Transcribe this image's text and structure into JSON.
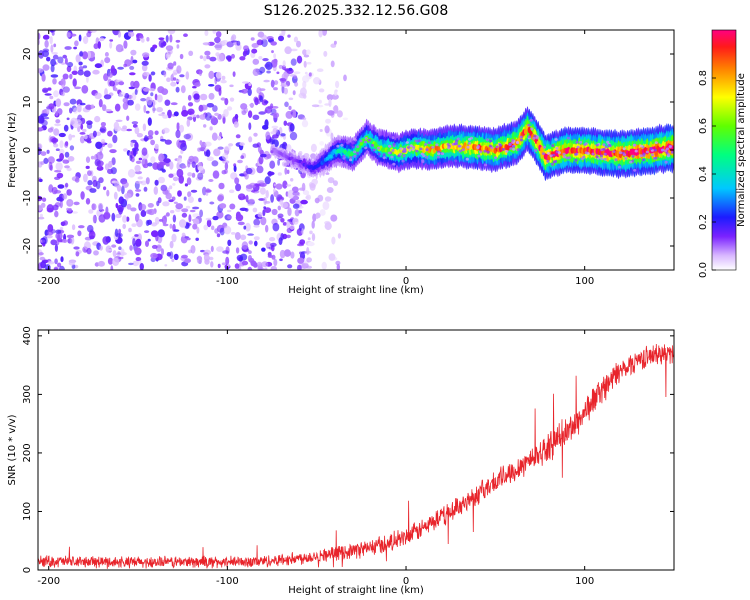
{
  "title": "S126.2025.332.12.56.G08",
  "chart_data": [
    {
      "type": "heatmap",
      "name": "spectrogram",
      "xlabel": "Height of straight line (km)",
      "ylabel": "Frequency (Hz)",
      "xlim": [
        -206,
        150
      ],
      "ylim": [
        -25,
        25
      ],
      "xticks": [
        -200,
        -100,
        0,
        100
      ],
      "yticks": [
        -20,
        -10,
        0,
        10,
        20
      ],
      "colorbar": {
        "label": "Normalized spectral amplitude",
        "range": [
          0,
          1
        ],
        "ticks": [
          0.0,
          0.2,
          0.4,
          0.6,
          0.8
        ],
        "tick_labels": [
          "0.0",
          "0.2",
          "0.4",
          "0.6",
          "0.8"
        ]
      },
      "noise_region": {
        "x_start": -206,
        "x_end": -57,
        "typical_amplitude": 0.12
      },
      "peak_track": [
        {
          "x": -75,
          "freq": 0,
          "amp": 0.1
        },
        {
          "x": -60,
          "freq": -2.5,
          "amp": 0.15
        },
        {
          "x": -52,
          "freq": -3.8,
          "amp": 0.2
        },
        {
          "x": -45,
          "freq": -2,
          "amp": 0.3
        },
        {
          "x": -38,
          "freq": 0,
          "amp": 0.4
        },
        {
          "x": -30,
          "freq": -1,
          "amp": 0.5
        },
        {
          "x": -22,
          "freq": 2.5,
          "amp": 0.55
        },
        {
          "x": -15,
          "freq": 0.5,
          "amp": 0.6
        },
        {
          "x": -5,
          "freq": -0.5,
          "amp": 0.65
        },
        {
          "x": 5,
          "freq": 0.5,
          "amp": 0.7
        },
        {
          "x": 15,
          "freq": 0,
          "amp": 0.75
        },
        {
          "x": 25,
          "freq": 0.8,
          "amp": 0.8
        },
        {
          "x": 40,
          "freq": 0.5,
          "amp": 0.85
        },
        {
          "x": 50,
          "freq": 0,
          "amp": 0.85
        },
        {
          "x": 62,
          "freq": 1.5,
          "amp": 0.88
        },
        {
          "x": 68,
          "freq": 4.5,
          "amp": 0.9
        },
        {
          "x": 72,
          "freq": 2.5,
          "amp": 0.9
        },
        {
          "x": 78,
          "freq": -1.5,
          "amp": 0.92
        },
        {
          "x": 90,
          "freq": 0,
          "amp": 0.93
        },
        {
          "x": 105,
          "freq": -0.3,
          "amp": 0.95
        },
        {
          "x": 120,
          "freq": -0.8,
          "amp": 0.97
        },
        {
          "x": 135,
          "freq": -0.2,
          "amp": 0.98
        },
        {
          "x": 150,
          "freq": 0.5,
          "amp": 1.0
        }
      ]
    },
    {
      "type": "line",
      "name": "snr",
      "xlabel": "Height of straight line (km)",
      "ylabel": "SNR (10 * v/v)",
      "xlim": [
        -206,
        150
      ],
      "ylim": [
        0,
        410
      ],
      "xticks": [
        -200,
        -100,
        0,
        100
      ],
      "yticks": [
        0,
        100,
        200,
        300,
        400
      ],
      "color": "#e8242b",
      "series": [
        {
          "name": "SNR",
          "x": [
            -206,
            -180,
            -150,
            -120,
            -100,
            -80,
            -60,
            -40,
            -20,
            0,
            20,
            40,
            60,
            80,
            95,
            100,
            110,
            120,
            130,
            140,
            150
          ],
          "y": [
            15,
            14,
            13,
            14,
            13,
            15,
            20,
            28,
            38,
            55,
            90,
            130,
            170,
            210,
            250,
            270,
            310,
            340,
            360,
            368,
            370
          ],
          "noise": [
            12,
            12,
            12,
            12,
            12,
            12,
            13,
            14,
            18,
            20,
            20,
            22,
            25,
            28,
            30,
            30,
            28,
            25,
            22,
            22,
            22
          ]
        }
      ]
    }
  ]
}
